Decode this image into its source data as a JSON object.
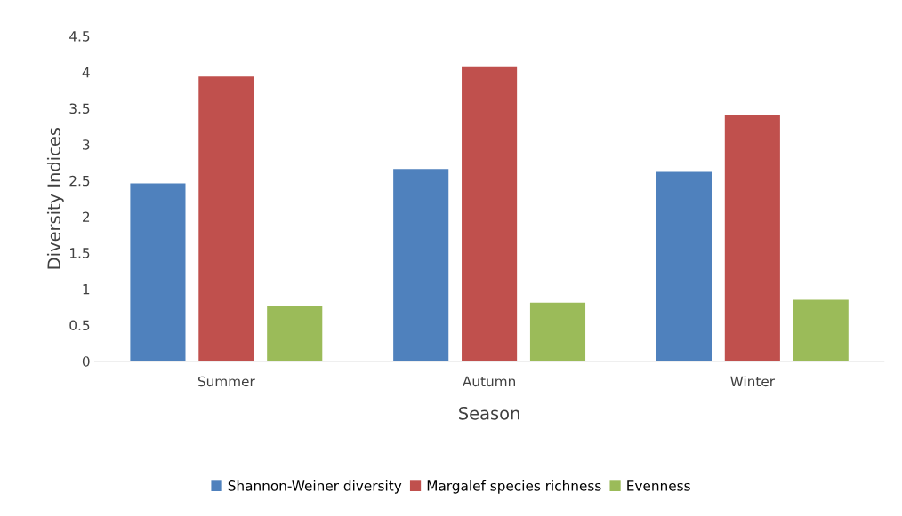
{
  "chart_data": {
    "type": "bar",
    "xlabel": "Season",
    "ylabel": "Diversity Indices",
    "categories": [
      "Summer",
      "Autumn",
      "Winter"
    ],
    "series": [
      {
        "name": "Shannon-Weiner diversity",
        "color": "#4f81bd",
        "values": [
          2.46,
          2.66,
          2.62
        ]
      },
      {
        "name": "Margalef species richness",
        "color": "#c0504d",
        "values": [
          3.94,
          4.08,
          3.41
        ]
      },
      {
        "name": "Evenness",
        "color": "#9bbb59",
        "values": [
          0.76,
          0.81,
          0.85
        ]
      }
    ],
    "ylim": [
      0,
      4.5
    ],
    "yticks": [
      0,
      0.5,
      1,
      1.5,
      2,
      2.5,
      3,
      3.5,
      4,
      4.5
    ],
    "grid": false,
    "legend": "bottom"
  }
}
